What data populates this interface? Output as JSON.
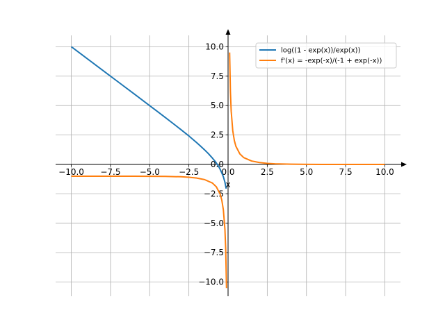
{
  "chart_data": {
    "type": "line",
    "title": "",
    "xlabel": "x",
    "ylabel": "",
    "xlim": [
      -11.0,
      11.0
    ],
    "ylim": [
      -11.2,
      11.2
    ],
    "grid": true,
    "legend_position": "top-right",
    "x_ticks": [
      -10.0,
      -7.5,
      -5.0,
      -2.5,
      0.0,
      2.5,
      5.0,
      7.5,
      10.0
    ],
    "x_tick_labels": [
      "−10.0",
      "−7.5",
      "−5.0",
      "−2.5",
      "0.0",
      "2.5",
      "5.0",
      "7.5",
      "10.0"
    ],
    "y_ticks": [
      -10.0,
      -7.5,
      -5.0,
      -2.5,
      0.0,
      2.5,
      5.0,
      7.5,
      10.0
    ],
    "y_tick_labels": [
      "−10.0",
      "−7.5",
      "−5.0",
      "−2.5",
      "0.0",
      "2.5",
      "5.0",
      "7.5",
      "10.0"
    ],
    "series": [
      {
        "name": "log((1 - exp(x))/exp(x))",
        "color": "#1f77b4",
        "x": [
          -10.0,
          -9.0,
          -8.0,
          -7.0,
          -6.0,
          -5.0,
          -4.5,
          -4.0,
          -3.5,
          -3.0,
          -2.5,
          -2.0,
          -1.75,
          -1.5,
          -1.25,
          -1.0,
          -0.8,
          -0.6,
          -0.5,
          -0.4,
          -0.3,
          -0.2,
          -0.12
        ],
        "y": [
          10.0,
          9.0,
          8.0,
          7.0,
          6.0,
          4.99,
          4.49,
          3.98,
          3.47,
          2.95,
          2.42,
          1.85,
          1.55,
          1.24,
          0.91,
          0.54,
          0.22,
          -0.17,
          -0.43,
          -0.72,
          -1.05,
          -1.51,
          -2.06
        ]
      },
      {
        "name": "f'(x) = -exp(-x)/(-1 + exp(-x))",
        "color": "#ff7f0e",
        "x": [
          -10.0,
          -8.0,
          -6.0,
          -4.0,
          -3.0,
          -2.5,
          -2.0,
          -1.5,
          -1.0,
          -0.75,
          -0.5,
          -0.4,
          -0.3,
          -0.2,
          -0.15,
          -0.1
        ],
        "y": [
          -1.0,
          -1.0,
          -1.0,
          -1.02,
          -1.05,
          -1.09,
          -1.16,
          -1.29,
          -1.58,
          -1.9,
          -2.54,
          -3.03,
          -3.86,
          -5.52,
          -7.18,
          -10.51
        ],
        "x2": [
          0.1,
          0.15,
          0.2,
          0.3,
          0.4,
          0.5,
          0.75,
          1.0,
          1.5,
          2.0,
          2.5,
          3.0,
          4.0,
          5.0,
          6.0,
          8.0,
          10.0
        ],
        "y2": [
          9.51,
          6.18,
          4.52,
          2.86,
          2.03,
          1.54,
          0.9,
          0.58,
          0.29,
          0.16,
          0.09,
          0.05,
          0.02,
          0.01,
          0.0,
          0.0,
          0.0
        ]
      }
    ]
  }
}
